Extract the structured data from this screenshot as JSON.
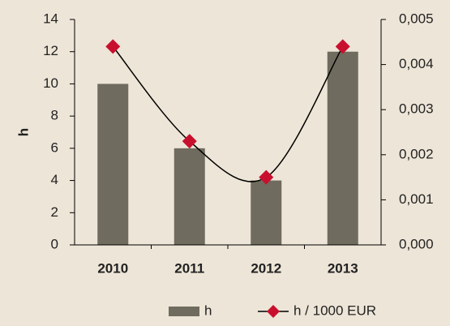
{
  "chart_data": {
    "type": "bar",
    "y_label": "h",
    "categories": [
      "2010",
      "2011",
      "2012",
      "2013"
    ],
    "series": [
      {
        "name": "h",
        "type": "bar",
        "color": "#6f6b5e",
        "values": [
          10,
          6,
          4,
          12
        ]
      },
      {
        "name": "h / 1000 EUR",
        "type": "line",
        "axis": "y2",
        "color": "#000000",
        "marker_color": "#c8102e",
        "values": [
          0.0044,
          0.0023,
          0.0015,
          0.0044
        ]
      }
    ],
    "ylim": [
      0,
      14
    ],
    "yticks": [
      0,
      2,
      4,
      6,
      8,
      10,
      12,
      14
    ],
    "y2lim": [
      0,
      0.005
    ],
    "y2ticks": [
      {
        "value": 0,
        "label": "0,000"
      },
      {
        "value": 0.001,
        "label": "0,001"
      },
      {
        "value": 0.002,
        "label": "0,002"
      },
      {
        "value": 0.003,
        "label": "0,003"
      },
      {
        "value": 0.004,
        "label": "0,004"
      },
      {
        "value": 0.005,
        "label": "0,005"
      }
    ],
    "legend": "bottom"
  }
}
